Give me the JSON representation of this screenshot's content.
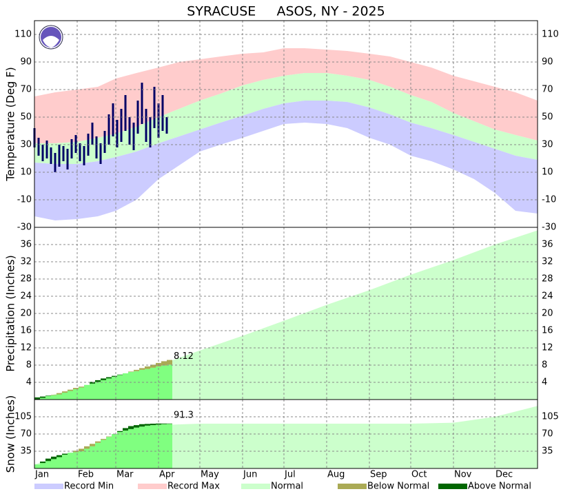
{
  "chart_data": [
    {
      "type": "temperature",
      "title": "SYRACUSE     ASOS, NY - 2025",
      "ylabel": "Temperature (Deg F)",
      "xlim": [
        0,
        365
      ],
      "ylim": [
        -30,
        120
      ],
      "yticks": [
        -30,
        -10,
        10,
        30,
        50,
        70,
        90,
        110
      ],
      "grid": true,
      "x": [
        0,
        15,
        31,
        46,
        59,
        74,
        90,
        105,
        120,
        135,
        151,
        166,
        181,
        196,
        212,
        227,
        243,
        258,
        273,
        288,
        304,
        319,
        334,
        349,
        365
      ],
      "series": [
        {
          "name": "Record Min",
          "color": "#ccccff",
          "values": [
            -22,
            -25,
            -24,
            -22,
            -18,
            -10,
            5,
            15,
            25,
            30,
            35,
            40,
            45,
            46,
            45,
            42,
            35,
            30,
            22,
            18,
            12,
            5,
            -5,
            -18,
            -20
          ]
        },
        {
          "name": "Record Max",
          "color": "#ffcccc",
          "values": [
            65,
            68,
            70,
            72,
            78,
            82,
            86,
            90,
            92,
            94,
            96,
            97,
            100,
            100,
            99,
            98,
            96,
            94,
            90,
            86,
            80,
            76,
            72,
            68,
            62
          ]
        },
        {
          "name": "Normal",
          "color": "#ccffcc",
          "values": [
            31,
            31,
            32,
            35,
            38,
            43,
            50,
            56,
            62,
            67,
            73,
            77,
            80,
            82,
            82,
            80,
            77,
            72,
            66,
            61,
            53,
            47,
            41,
            37,
            33
          ],
          "low": [
            17,
            16,
            16,
            18,
            21,
            25,
            31,
            36,
            41,
            46,
            51,
            56,
            60,
            62,
            62,
            61,
            57,
            52,
            46,
            42,
            37,
            32,
            27,
            22,
            19
          ]
        }
      ],
      "observed": {
        "color": "#000066",
        "x": [
          0,
          3,
          6,
          9,
          12,
          15,
          18,
          21,
          24,
          27,
          30,
          33,
          36,
          39,
          42,
          45,
          48,
          51,
          54,
          57,
          60,
          63,
          66,
          69,
          72,
          75,
          78,
          81,
          84,
          87,
          90,
          93,
          96
        ],
        "high": [
          42,
          35,
          30,
          33,
          28,
          24,
          30,
          29,
          27,
          34,
          37,
          31,
          29,
          38,
          46,
          36,
          31,
          40,
          52,
          60,
          48,
          56,
          66,
          50,
          46,
          62,
          75,
          56,
          50,
          72,
          60,
          66,
          50
        ],
        "low": [
          28,
          22,
          18,
          20,
          16,
          10,
          14,
          18,
          12,
          20,
          24,
          18,
          15,
          22,
          30,
          20,
          16,
          24,
          30,
          36,
          28,
          32,
          40,
          30,
          26,
          38,
          45,
          32,
          28,
          42,
          35,
          40,
          38
        ]
      }
    },
    {
      "type": "accumulation",
      "ylabel": "Precipitation (Inches)",
      "xlim": [
        0,
        365
      ],
      "ylim": [
        0,
        40
      ],
      "yticks": [
        4,
        8,
        12,
        16,
        20,
        24,
        28,
        32,
        36
      ],
      "grid": true,
      "color": "#80ff80",
      "normal_color": "#ccffcc",
      "below_normal": {
        "name": "Below Normal",
        "color": "#aaaa55"
      },
      "above_normal": {
        "name": "Above Normal",
        "color": "#006600"
      },
      "x": [
        0,
        4,
        8,
        12,
        16,
        20,
        24,
        28,
        32,
        36,
        40,
        44,
        48,
        52,
        56,
        60,
        64,
        68,
        72,
        76,
        80,
        84,
        88,
        92,
        96
      ],
      "values": [
        0.5,
        0.7,
        0.9,
        1.0,
        1.2,
        1.6,
        2.0,
        2.4,
        2.8,
        3.4,
        4.1,
        4.5,
        4.9,
        5.2,
        5.5,
        5.8,
        6.1,
        6.4,
        6.6,
        6.9,
        7.1,
        7.4,
        7.7,
        7.9,
        8.12
      ],
      "normal": [
        0,
        0.4,
        0.8,
        1.1,
        1.5,
        1.9,
        2.3,
        2.7,
        3.0,
        3.4,
        3.7,
        4.1,
        4.5,
        4.9,
        5.3,
        5.7,
        6.1,
        6.5,
        6.9,
        7.3,
        7.7,
        8.1,
        8.5,
        8.9,
        9.2
      ],
      "normal_x": [
        0,
        31,
        59,
        90,
        120,
        151,
        181,
        212,
        243,
        273,
        304,
        334,
        365
      ],
      "normal_values": [
        0,
        2.6,
        5.0,
        8.0,
        11.4,
        14.8,
        18.3,
        22.0,
        25.4,
        29.0,
        32.4,
        36.0,
        39.3
      ]
    },
    {
      "type": "accumulation",
      "ylabel": "Snow (Inches)",
      "xlim": [
        0,
        365
      ],
      "ylim": [
        0,
        140
      ],
      "yticks": [
        35,
        70,
        105
      ],
      "grid": true,
      "color": "#80ff80",
      "normal_color": "#ccffcc",
      "below_normal": {
        "color": "#aaaa55"
      },
      "above_normal": {
        "color": "#006600"
      },
      "xticks": [
        {
          "value": 0,
          "label": "Jan"
        },
        {
          "value": 31,
          "label": "Feb"
        },
        {
          "value": 59,
          "label": "Mar"
        },
        {
          "value": 90,
          "label": "Apr"
        },
        {
          "value": 120,
          "label": "May"
        },
        {
          "value": 151,
          "label": "Jun"
        },
        {
          "value": 181,
          "label": "Jul"
        },
        {
          "value": 212,
          "label": "Aug"
        },
        {
          "value": 243,
          "label": "Sep"
        },
        {
          "value": 273,
          "label": "Oct"
        },
        {
          "value": 304,
          "label": "Nov"
        },
        {
          "value": 334,
          "label": "Dec"
        }
      ],
      "x": [
        0,
        4,
        8,
        12,
        16,
        20,
        24,
        28,
        32,
        36,
        40,
        44,
        48,
        52,
        56,
        60,
        64,
        68,
        72,
        76,
        80,
        84,
        88,
        92,
        96
      ],
      "values": [
        8,
        14,
        20,
        24,
        27,
        30,
        32,
        33,
        35,
        40,
        45,
        52,
        58,
        64,
        70,
        76,
        82,
        86,
        88,
        90,
        90.5,
        91,
        91.3,
        91.3,
        91.3
      ],
      "normal": [
        8,
        11,
        15,
        19,
        23,
        28,
        32,
        36,
        40,
        45,
        50,
        55,
        60,
        65,
        70,
        74,
        77,
        80,
        83,
        85,
        87,
        88,
        89,
        90,
        90.5
      ],
      "normal_x": [
        0,
        31,
        59,
        90,
        120,
        151,
        181,
        212,
        243,
        273,
        304,
        334,
        365
      ],
      "normal_values": [
        8,
        35,
        65,
        88,
        91,
        91,
        91,
        91,
        91,
        91,
        93,
        105,
        127
      ]
    }
  ]
}
